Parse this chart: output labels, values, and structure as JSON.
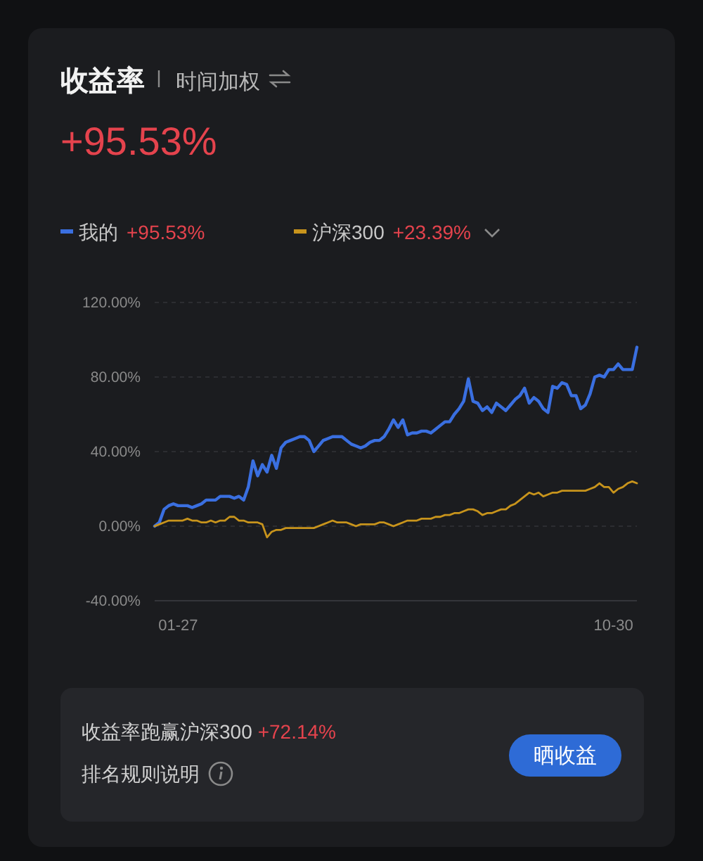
{
  "chart_data": {
    "type": "line",
    "title": "收益率",
    "subtitle": "时间加权",
    "categories": [
      null,
      null,
      null,
      null,
      null,
      "01-27",
      null,
      null,
      null,
      null,
      null,
      null,
      null,
      null,
      null,
      null,
      null,
      null,
      null,
      null,
      null,
      null,
      null,
      null,
      null,
      null,
      null,
      null,
      null,
      null,
      null,
      null,
      null,
      null,
      null,
      null,
      null,
      null,
      null,
      null,
      null,
      null,
      null,
      null,
      null,
      null,
      null,
      null,
      null,
      null,
      null,
      null,
      null,
      null,
      null,
      null,
      null,
      null,
      null,
      null,
      null,
      null,
      null,
      null,
      null,
      null,
      null,
      null,
      null,
      null,
      null,
      null,
      null,
      null,
      null,
      null,
      null,
      null,
      null,
      null,
      null,
      null,
      null,
      null,
      null,
      null,
      null,
      null,
      null,
      null,
      null,
      null,
      null,
      null,
      null,
      null,
      null,
      null,
      "10-30",
      null,
      null,
      null,
      null,
      null
    ],
    "series": [
      {
        "name": "我的",
        "color": "#3a6fe0",
        "values": [
          0,
          2,
          9,
          11,
          12,
          11,
          11,
          11,
          10,
          11,
          12,
          14,
          14,
          14,
          16,
          16,
          16,
          15,
          16,
          14,
          21,
          35,
          27,
          33,
          29,
          38,
          31,
          42,
          45,
          46,
          47,
          48,
          48,
          46,
          40,
          43,
          46,
          47,
          48,
          48,
          48,
          46,
          44,
          43,
          42,
          43,
          45,
          46,
          46,
          48,
          52,
          57,
          53,
          57,
          49,
          50,
          50,
          51,
          51,
          50,
          52,
          54,
          56,
          56,
          60,
          63,
          67,
          79,
          67,
          66,
          62,
          64,
          61,
          66,
          64,
          62,
          65,
          68,
          70,
          74,
          66,
          69,
          67,
          63,
          61,
          75,
          74,
          77,
          76,
          70,
          70,
          63,
          65,
          71,
          80,
          81,
          80,
          84,
          84,
          87,
          84,
          84,
          84,
          96
        ]
      },
      {
        "name": "沪深300",
        "color": "#c8941c",
        "values": [
          0,
          1,
          2,
          3,
          3,
          3,
          3,
          4,
          3,
          3,
          2,
          2,
          3,
          2,
          3,
          3,
          5,
          5,
          3,
          3,
          2,
          2,
          2,
          1,
          -6,
          -3,
          -2,
          -2,
          -1,
          -1,
          -1,
          -1,
          -1,
          -1,
          -1,
          0,
          1,
          2,
          3,
          2,
          2,
          2,
          1,
          0,
          1,
          1,
          1,
          1,
          2,
          2,
          1,
          0,
          1,
          2,
          3,
          3,
          3,
          4,
          4,
          4,
          5,
          5,
          6,
          6,
          7,
          7,
          8,
          9,
          9,
          8,
          6,
          7,
          7,
          8,
          9,
          9,
          11,
          12,
          14,
          16,
          18,
          17,
          18,
          16,
          17,
          18,
          18,
          19,
          19,
          19,
          19,
          19,
          19,
          20,
          21,
          23,
          21,
          21,
          18,
          20,
          21,
          23,
          24,
          23
        ]
      }
    ],
    "ylim": [
      -40,
      120
    ],
    "yticks": [
      {
        "value": -40,
        "label": "-40.00%"
      },
      {
        "value": 0,
        "label": "0.00%"
      },
      {
        "value": 40,
        "label": "40.00%"
      },
      {
        "value": 80,
        "label": "80.00%"
      },
      {
        "value": 120,
        "label": "120.00%"
      }
    ],
    "grid": "y",
    "legend": "top",
    "annotations": [
      "+95.53%",
      "+95.53%",
      "+23.39%",
      "收益率跑赢沪深300",
      "+72.14%",
      "排名规则说明",
      "晒收益"
    ]
  }
}
